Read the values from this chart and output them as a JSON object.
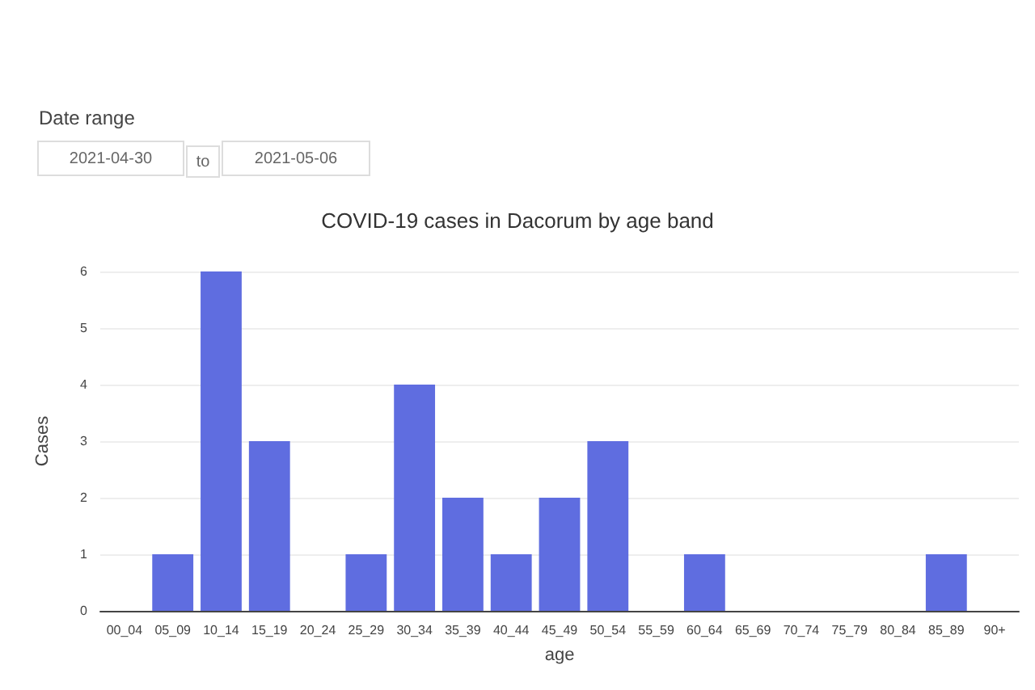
{
  "chart_data": {
    "type": "bar",
    "title": "COVID-19 cases in Dacorum by age band",
    "xlabel": "age",
    "ylabel": "Cases",
    "annotations": [
      "Date range",
      "2021-04-30",
      "to",
      "2021-05-06"
    ],
    "categories": [
      "00_04",
      "05_09",
      "10_14",
      "15_19",
      "20_24",
      "25_29",
      "30_34",
      "35_39",
      "40_44",
      "45_49",
      "50_54",
      "55_59",
      "60_64",
      "65_69",
      "70_74",
      "75_79",
      "80_84",
      "85_89",
      "90+"
    ],
    "values": [
      0,
      1,
      6,
      3,
      0,
      1,
      4,
      2,
      1,
      2,
      3,
      0,
      1,
      0,
      0,
      0,
      0,
      1,
      0
    ],
    "color": "#5f6de0",
    "ylim": [
      0,
      6
    ],
    "yticks": [
      0,
      1,
      2,
      3,
      4,
      5,
      6
    ],
    "grid": "y"
  }
}
